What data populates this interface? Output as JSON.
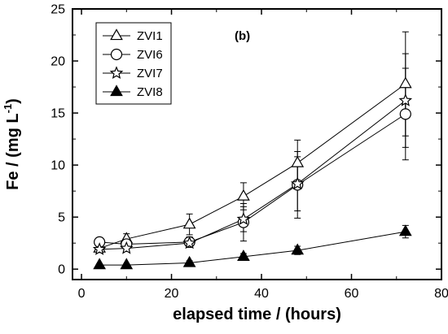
{
  "chart_data": {
    "type": "scatter",
    "panel_label": "(b)",
    "xlabel": "elapsed time / (hours)",
    "ylabel_main": "Fe / (mg L",
    "ylabel_sup": "-1",
    "ylabel_close": ")",
    "xlim": [
      -2,
      80
    ],
    "ylim": [
      -1,
      25
    ],
    "xticks": [
      0,
      20,
      40,
      60,
      80
    ],
    "yticks": [
      0,
      5,
      10,
      15,
      20,
      25
    ],
    "grid": false,
    "legend_position": "top-left",
    "series": [
      {
        "name": "ZVI1",
        "marker": "triangle-open",
        "x": [
          4,
          10,
          24,
          36,
          48,
          72
        ],
        "y": [
          2.0,
          2.9,
          4.3,
          7.0,
          10.2,
          17.8
        ],
        "yerr": [
          0.4,
          0.5,
          1.0,
          1.3,
          2.2,
          5.0
        ]
      },
      {
        "name": "ZVI6",
        "marker": "circle-open",
        "x": [
          4,
          10,
          24,
          36,
          48,
          72
        ],
        "y": [
          2.6,
          2.4,
          2.6,
          4.5,
          8.1,
          14.9
        ],
        "yerr": [
          0.3,
          0.4,
          0.5,
          1.8,
          3.2,
          4.4
        ]
      },
      {
        "name": "ZVI7",
        "marker": "star-open",
        "x": [
          4,
          10,
          24,
          36,
          48,
          72
        ],
        "y": [
          1.9,
          2.0,
          2.5,
          4.8,
          8.2,
          16.2
        ],
        "yerr": [
          0.3,
          0.3,
          0.4,
          1.2,
          2.6,
          4.5
        ]
      },
      {
        "name": "ZVI8",
        "marker": "triangle-filled",
        "x": [
          4,
          10,
          24,
          36,
          48,
          72
        ],
        "y": [
          0.4,
          0.4,
          0.6,
          1.2,
          1.8,
          3.6
        ],
        "yerr": [
          0.1,
          0.1,
          0.2,
          0.3,
          0.4,
          0.6
        ]
      }
    ]
  }
}
